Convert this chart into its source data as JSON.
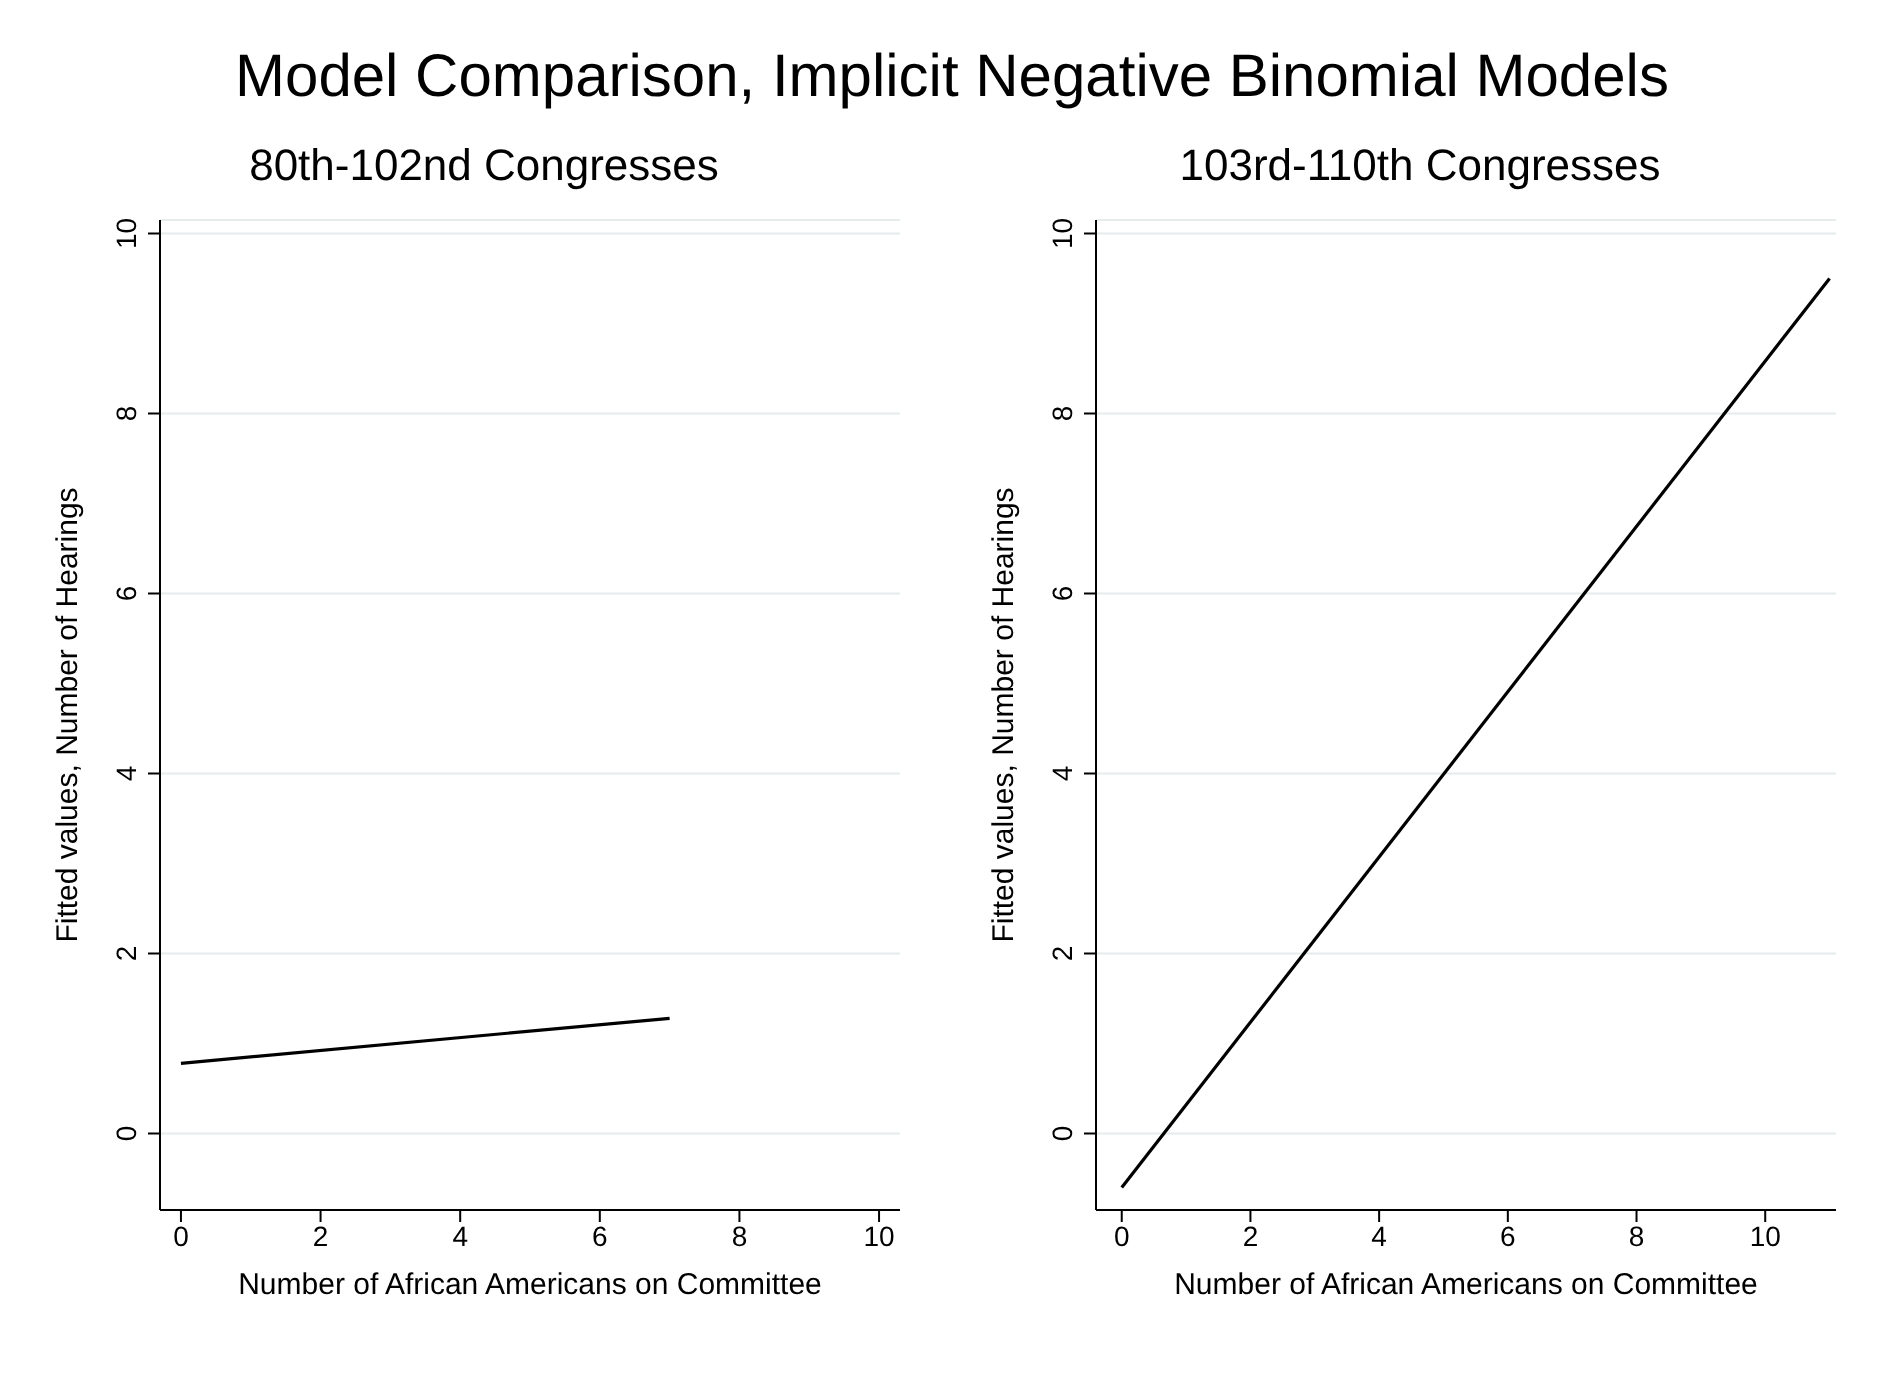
{
  "chart_data": [
    {
      "type": "line",
      "title": "80th-102nd Congresses",
      "annotations": [
        "Model Comparison, Implicit Negative Binomial Models"
      ],
      "xlabel": "Number of African Americans on Committee",
      "ylabel": "Fitted values, Number of Hearings",
      "xlim": [
        -0.3,
        10.3
      ],
      "ylim": [
        -0.85,
        10.15
      ],
      "xticks": [
        0,
        2,
        4,
        6,
        8,
        10
      ],
      "yticks": [
        0,
        2,
        4,
        6,
        8,
        10
      ],
      "grid": "y",
      "marker": "none",
      "line_style": "solid",
      "series": [
        {
          "color": "#000000",
          "x": [
            0,
            7
          ],
          "values": [
            0.78,
            1.28
          ]
        }
      ]
    },
    {
      "type": "line",
      "title": "103rd-110th Congresses",
      "xlabel": "Number of African Americans on Committee",
      "ylabel": "Fitted values, Number of Hearings",
      "xlim": [
        -0.4,
        11.1
      ],
      "ylim": [
        -0.85,
        10.15
      ],
      "xticks": [
        0,
        2,
        4,
        6,
        8,
        10
      ],
      "yticks": [
        0,
        2,
        4,
        6,
        8,
        10
      ],
      "grid": "y",
      "marker": "none",
      "line_style": "solid",
      "series": [
        {
          "color": "#000000",
          "x": [
            0,
            11
          ],
          "values": [
            -0.6,
            9.5
          ]
        }
      ]
    }
  ]
}
